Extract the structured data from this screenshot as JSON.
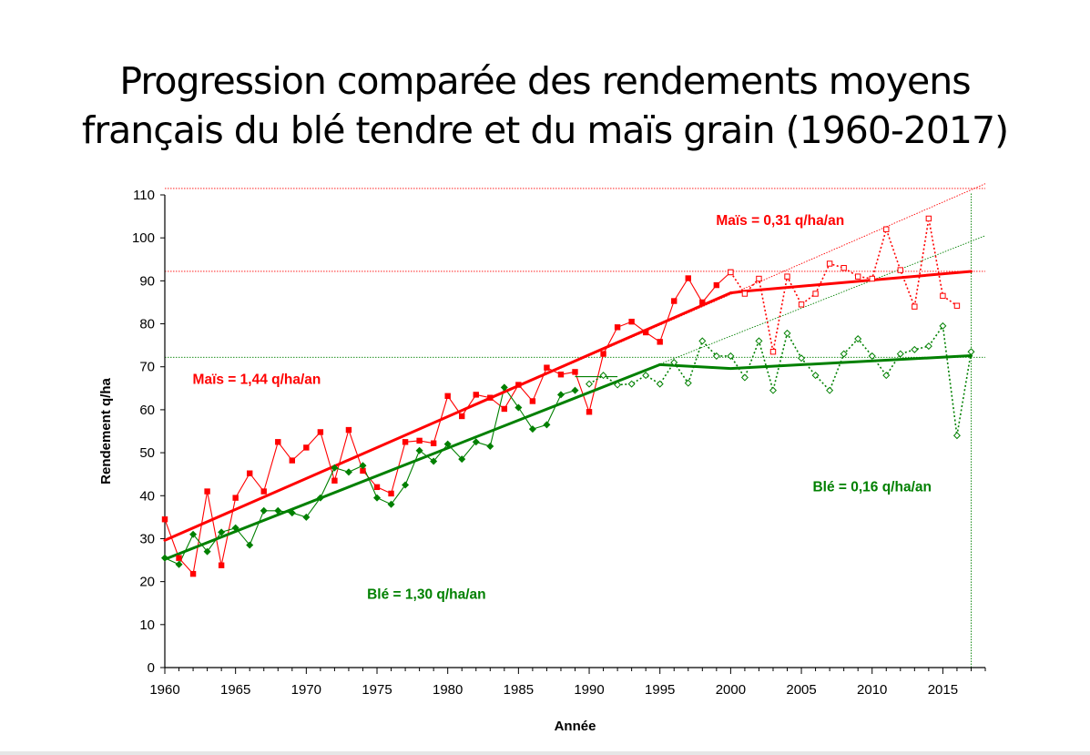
{
  "title_line1": "Progression comparée des rendements moyens",
  "title_line2": "français du blé tendre et du maïs grain (1960-2017)",
  "chart_data": {
    "type": "line",
    "xlabel": "Année",
    "ylabel": "Rendement q/ha",
    "xlim": [
      1960,
      2018
    ],
    "ylim": [
      0,
      110
    ],
    "xticks": [
      1960,
      1965,
      1970,
      1975,
      1980,
      1985,
      1990,
      1995,
      2000,
      2005,
      2010,
      2015
    ],
    "yticks": [
      0,
      10,
      20,
      30,
      40,
      50,
      60,
      70,
      80,
      90,
      100,
      110
    ],
    "colors": {
      "mais": "#ff0000",
      "ble": "#008000"
    },
    "series": [
      {
        "key": "mais_obs",
        "color": "#ff0000",
        "style": "solid-filled-squares",
        "x": [
          1960,
          1961,
          1962,
          1963,
          1964,
          1965,
          1966,
          1967,
          1968,
          1969,
          1970,
          1971,
          1972,
          1973,
          1974,
          1975,
          1976,
          1977,
          1978,
          1979,
          1980,
          1981,
          1982,
          1983,
          1984,
          1985,
          1986,
          1987,
          1988,
          1989,
          1990,
          1991,
          1992,
          1993,
          1994,
          1995,
          1996,
          1997,
          1998,
          1999,
          2000
        ],
        "values": [
          34.5,
          25.5,
          21.8,
          41,
          23.8,
          39.5,
          45.2,
          41,
          52.5,
          48.2,
          51.2,
          54.8,
          43.5,
          55.3,
          45.8,
          42,
          40.5,
          52.5,
          52.8,
          52.2,
          63.2,
          58.5,
          63.5,
          62.8,
          60.2,
          65.8,
          62,
          69.8,
          68.2,
          68.8,
          59.5,
          73,
          79.2,
          80.5,
          78,
          75.8,
          85.3,
          90.6,
          85,
          89,
          92
        ]
      },
      {
        "key": "mais_obs_recent",
        "color": "#ff0000",
        "style": "dotted-open-squares",
        "x": [
          2000,
          2001,
          2002,
          2003,
          2004,
          2005,
          2006,
          2007,
          2008,
          2009,
          2010,
          2011,
          2012,
          2013,
          2014,
          2015,
          2016
        ],
        "values": [
          92,
          87,
          90.5,
          73.5,
          91,
          84.5,
          87,
          94,
          93,
          91,
          90.5,
          102,
          92.5,
          84,
          104.5,
          86.5,
          84.2
        ]
      },
      {
        "key": "ble_obs",
        "color": "#008000",
        "style": "solid-filled-diamonds",
        "x": [
          1960,
          1961,
          1962,
          1963,
          1964,
          1965,
          1966,
          1967,
          1968,
          1969,
          1970,
          1971,
          1972,
          1973,
          1974,
          1975,
          1976,
          1977,
          1978,
          1979,
          1980,
          1981,
          1982,
          1983,
          1984,
          1985,
          1986,
          1987,
          1988,
          1989
        ],
        "values": [
          25.5,
          24,
          31,
          27,
          31.5,
          32.5,
          28.5,
          36.5,
          36.5,
          36,
          35,
          39.5,
          46.5,
          45.5,
          47,
          39.5,
          38,
          42.5,
          50.5,
          48,
          52,
          48.5,
          52.5,
          51.5,
          65.2,
          60.5,
          55.5,
          56.5,
          63.5,
          64.5
        ]
      },
      {
        "key": "ble_obs_recent",
        "color": "#008000",
        "style": "dotted-open-diamonds",
        "x": [
          1990,
          1991,
          1992,
          1993,
          1994,
          1995,
          1996,
          1997,
          1998,
          1999,
          2000,
          2001,
          2002,
          2003,
          2004,
          2005,
          2006,
          2007,
          2008,
          2009,
          2010,
          2011,
          2012,
          2013,
          2014,
          2015,
          2016,
          2017
        ],
        "values": [
          66,
          68,
          65.8,
          66,
          68,
          66,
          71,
          66.2,
          76,
          72.5,
          72.5,
          67.5,
          76,
          64.5,
          77.8,
          72,
          68,
          64.5,
          73,
          76.5,
          72.5,
          68,
          73,
          74,
          74.8,
          79.5,
          54,
          73.5
        ]
      },
      {
        "key": "mais_trend_1",
        "color": "#ff0000",
        "style": "thick-trend",
        "x": [
          1960,
          2000
        ],
        "values": [
          29.6,
          87.2
        ]
      },
      {
        "key": "mais_trend_2",
        "color": "#ff0000",
        "style": "thick-trend",
        "x": [
          2000,
          2001,
          2017
        ],
        "values": [
          87.2,
          87.6,
          92.2
        ]
      },
      {
        "key": "ble_trend_1",
        "color": "#008000",
        "style": "thick-trend",
        "x": [
          1960,
          1995
        ],
        "values": [
          25.2,
          70.5
        ]
      },
      {
        "key": "ble_trend_2",
        "color": "#008000",
        "style": "thick-trend",
        "x": [
          1995,
          2000,
          2017
        ],
        "values": [
          70.5,
          69.6,
          72.6
        ]
      },
      {
        "key": "mais_extrap",
        "color": "#ff0000",
        "style": "thin-dotted-trend",
        "x": [
          1960,
          2018
        ],
        "values": [
          29.6,
          112.6
        ]
      },
      {
        "key": "ble_extrap",
        "color": "#008000",
        "style": "thin-dotted-trend",
        "x": [
          1960,
          2018
        ],
        "values": [
          25.2,
          100.5
        ]
      },
      {
        "key": "ble_pre1990_tail",
        "color": "#008000",
        "style": "thin-solid",
        "x": [
          1989,
          1990,
          1991,
          1992
        ],
        "values": [
          67.7,
          67.7,
          67.7,
          67.7
        ]
      }
    ],
    "reference_lines": [
      {
        "color": "#ff0000",
        "axis": "y",
        "value": 111.5
      },
      {
        "color": "#ff0000",
        "axis": "y",
        "value": 92.2
      },
      {
        "color": "#008000",
        "axis": "y",
        "value": 72.2
      },
      {
        "color": "#008000",
        "axis": "x",
        "value": 2017
      }
    ],
    "annotations": [
      {
        "text": "Maïs = 0,31 q/ha/an",
        "color": "#ff0000",
        "x": 2003.5,
        "y": 103
      },
      {
        "text": "Maïs = 1,44 q/ha/an",
        "color": "#ff0000",
        "x": 1966.5,
        "y": 66
      },
      {
        "text": "Blé = 0,16 q/ha/an",
        "color": "#008000",
        "x": 2010,
        "y": 41
      },
      {
        "text": "Blé = 1,30 q/ha/an",
        "color": "#008000",
        "x": 1978.5,
        "y": 16
      }
    ]
  }
}
